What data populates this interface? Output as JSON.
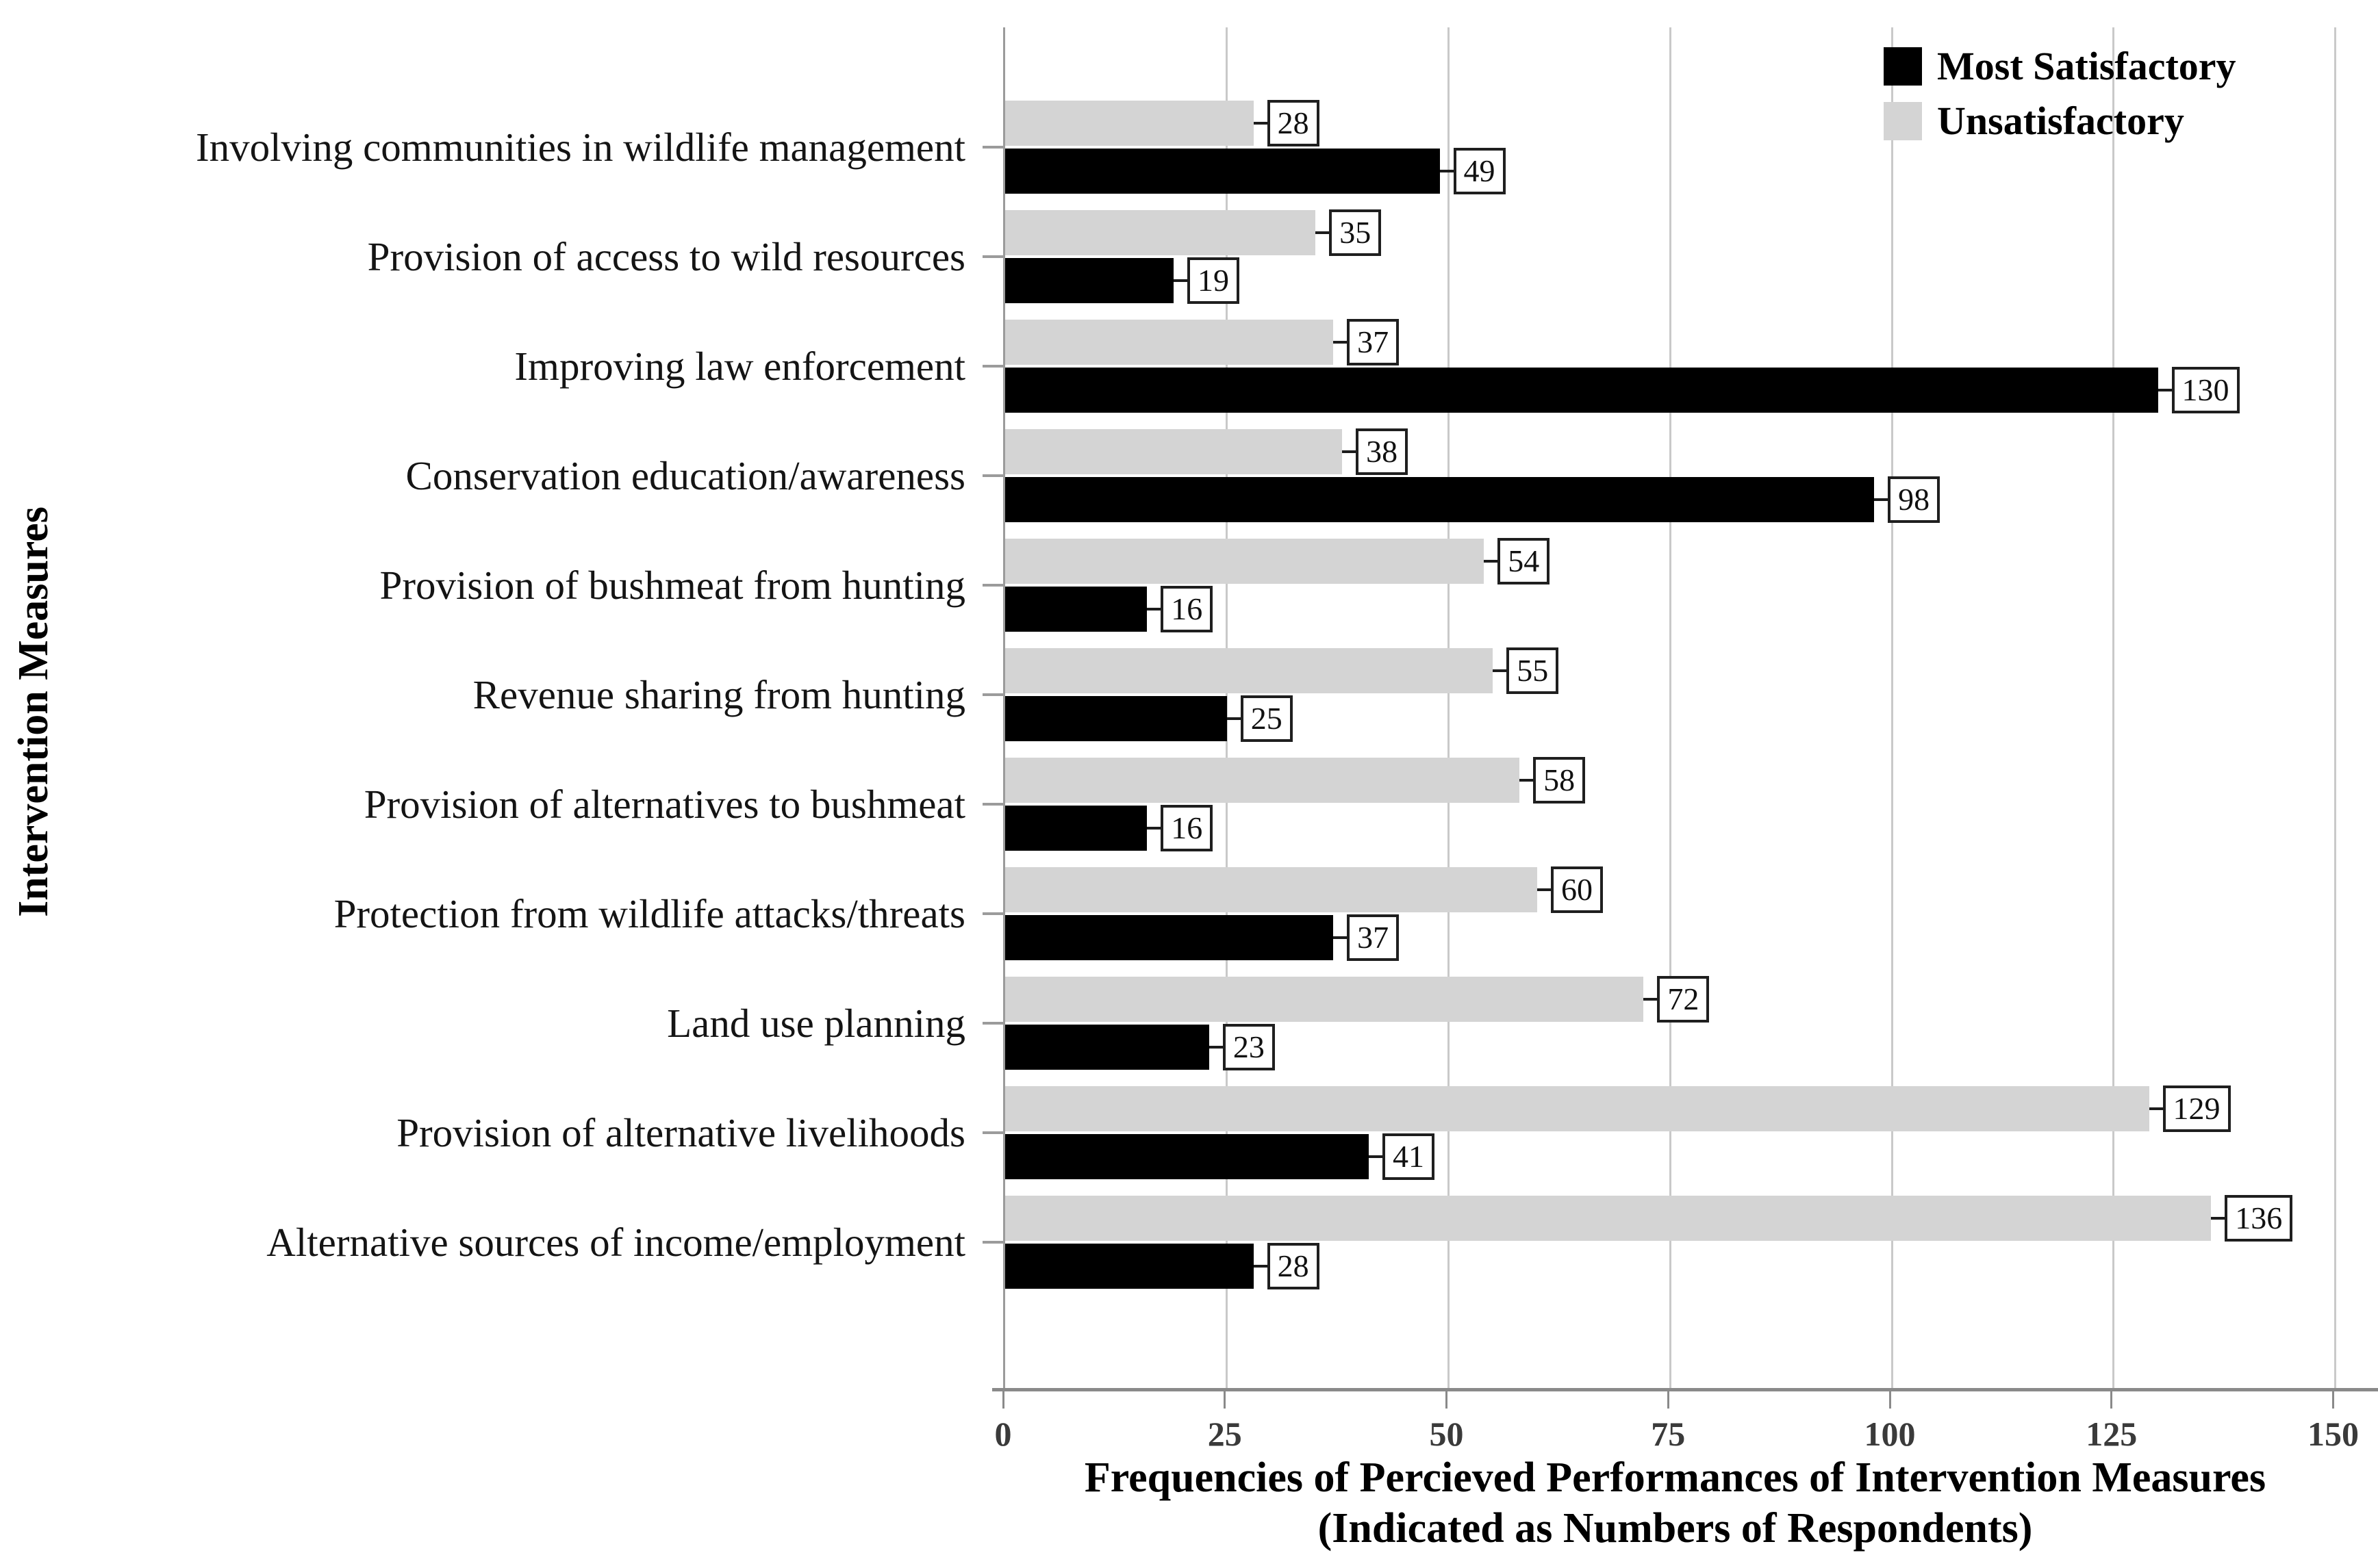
{
  "axis": {
    "y_title": "Intervention Measures",
    "x_title_line1": "Frequencies of Percieved Performances of Intervention Measures",
    "x_title_line2": "(Indicated as Numbers of Respondents)"
  },
  "legend": {
    "items": [
      {
        "label": "Most Satisfactory",
        "color": "#000000"
      },
      {
        "label": "Unsatisfactory",
        "color": "#d4d4d4"
      }
    ]
  },
  "styles": {
    "gridline_color": "#c9c9c9",
    "axis_line_color": "#8a8a8a",
    "value_box_border": "#1f1f1f"
  },
  "chart_data": {
    "type": "bar",
    "orientation": "horizontal",
    "title": "",
    "xlabel": "Frequencies of Percieved Performances of Intervention Measures (Indicated as Numbers of Respondents)",
    "ylabel": "Intervention Measures",
    "xlim": [
      0,
      150
    ],
    "x_ticks": [
      0,
      25,
      50,
      75,
      100,
      125,
      150
    ],
    "grid": "vertical gridlines at x ticks",
    "legend_position": "top-right",
    "bar_order_within_group": [
      "Unsatisfactory",
      "Most Satisfactory"
    ],
    "value_labels": "boxed labels at bar ends",
    "categories": [
      "Involving communities in wildlife management",
      "Provision of access to wild resources",
      "Improving law enforcement",
      "Conservation education/awareness",
      "Provision of bushmeat from hunting",
      "Revenue sharing from hunting",
      "Provision of alternatives to bushmeat",
      "Protection from wildlife attacks/threats",
      "Land use planning",
      "Provision of alternative livelihoods",
      "Alternative sources of income/employment"
    ],
    "series": [
      {
        "name": "Most Satisfactory",
        "color": "#000000",
        "values": [
          49,
          19,
          130,
          98,
          16,
          25,
          16,
          37,
          23,
          41,
          28
        ]
      },
      {
        "name": "Unsatisfactory",
        "color": "#d4d4d4",
        "values": [
          28,
          35,
          37,
          38,
          54,
          55,
          58,
          60,
          72,
          129,
          136
        ]
      }
    ]
  }
}
